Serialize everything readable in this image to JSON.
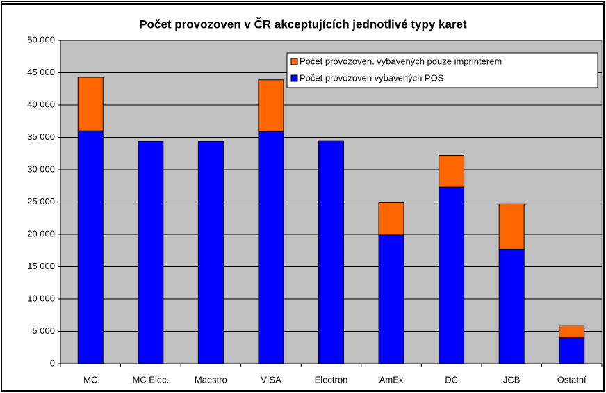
{
  "chart_data": {
    "type": "stacked_bar",
    "title": "Počet provozoven v ČR akceptujících jednotlivé typy karet",
    "categories": [
      "MC",
      "MC Elec.",
      "Maestro",
      "VISA",
      "Electron",
      "AmEx",
      "DC",
      "JCB",
      "Ostatní"
    ],
    "series": [
      {
        "name": "Počet provozoven vybavených POS",
        "color": "#0000ff",
        "values": [
          36000,
          34400,
          34400,
          35900,
          34500,
          19900,
          27300,
          17700,
          4000
        ]
      },
      {
        "name": "Počet provozoven, vybavených pouze imprinterem",
        "color": "#ff6600",
        "values": [
          8300,
          0,
          0,
          8000,
          0,
          5000,
          4900,
          7000,
          1900
        ]
      }
    ],
    "ylim": [
      0,
      50000
    ],
    "yticks": [
      0,
      {
        "value": 5000,
        "label": "5 000"
      },
      {
        "value": 10000,
        "label": "10 000"
      },
      {
        "value": 15000,
        "label": "15 000"
      },
      {
        "value": 20000,
        "label": "20 000"
      },
      {
        "value": 25000,
        "label": "25 000"
      },
      {
        "value": 30000,
        "label": "30 000"
      },
      {
        "value": 35000,
        "label": "35 000"
      },
      {
        "value": 40000,
        "label": "40 000"
      },
      {
        "value": 45000,
        "label": "45 000"
      },
      {
        "value": 50000,
        "label": "50 000"
      }
    ],
    "grid": true,
    "legend": "top-right"
  }
}
